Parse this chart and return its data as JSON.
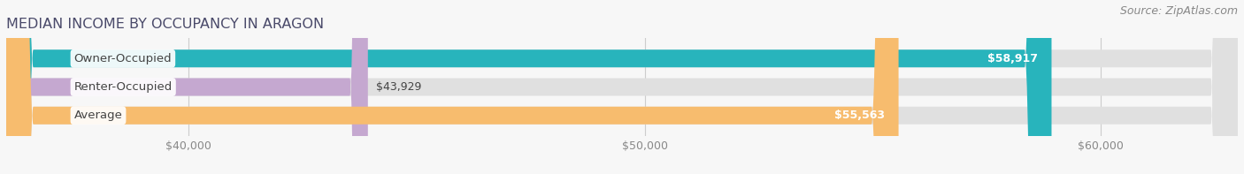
{
  "title": "MEDIAN INCOME BY OCCUPANCY IN ARAGON",
  "source": "Source: ZipAtlas.com",
  "categories": [
    "Owner-Occupied",
    "Renter-Occupied",
    "Average"
  ],
  "values": [
    58917,
    43929,
    55563
  ],
  "bar_colors": [
    "#28b4bc",
    "#c5a8d0",
    "#f7bc6e"
  ],
  "value_labels": [
    "$58,917",
    "$43,929",
    "$55,563"
  ],
  "xlim_min": 36000,
  "xlim_max": 63000,
  "xaxis_min": 38000,
  "xticks": [
    40000,
    50000,
    60000
  ],
  "xticklabels": [
    "$40,000",
    "$50,000",
    "$60,000"
  ],
  "background_color": "#f7f7f7",
  "bar_bg_color": "#e0e0e0",
  "title_color": "#4a4a6a",
  "source_color": "#888888",
  "label_color": "#444444",
  "tick_color": "#888888",
  "title_fontsize": 11.5,
  "source_fontsize": 9,
  "label_fontsize": 9.5,
  "value_fontsize": 9,
  "tick_fontsize": 9,
  "bar_height": 0.62,
  "bar_gap": 0.38
}
